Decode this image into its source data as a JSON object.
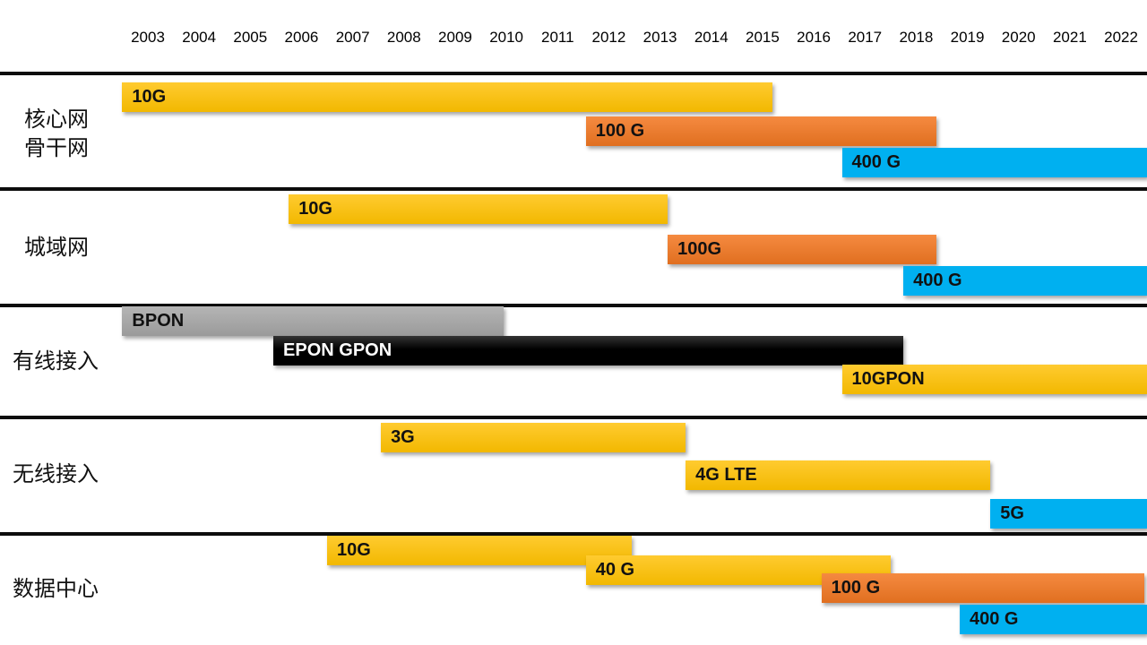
{
  "chart_data": {
    "type": "gantt",
    "title": "",
    "years": [
      "2003",
      "2004",
      "2005",
      "2006",
      "2007",
      "2008",
      "2009",
      "2010",
      "2011",
      "2012",
      "2013",
      "2014",
      "2015",
      "2016",
      "2017",
      "2018",
      "2019",
      "2020",
      "2021",
      "2022"
    ],
    "colors": {
      "yellow": "#FFC000",
      "orange": "#ED7D31",
      "blue": "#00B0F0",
      "gray": "#A6A6A6",
      "black": "#000000"
    },
    "rows": [
      {
        "label": "核心网\n骨干网",
        "bars": [
          {
            "label": "10G",
            "start": 2002.5,
            "end": 2015.2,
            "color": "yellow"
          },
          {
            "label": "100 G",
            "start": 2011.55,
            "end": 2018.4,
            "color": "orange"
          },
          {
            "label": "400 G",
            "start": 2016.55,
            "end": 2022.5,
            "color": "blue"
          }
        ]
      },
      {
        "label": "城域网",
        "bars": [
          {
            "label": "10G",
            "start": 2005.75,
            "end": 2013.15,
            "color": "yellow"
          },
          {
            "label": "100G",
            "start": 2013.15,
            "end": 2018.4,
            "color": "orange"
          },
          {
            "label": "400 G",
            "start": 2017.75,
            "end": 2022.5,
            "color": "blue"
          }
        ]
      },
      {
        "label": "有线接入",
        "bars": [
          {
            "label": "BPON",
            "start": 2002.5,
            "end": 2009.95,
            "color": "gray"
          },
          {
            "label": "EPON GPON",
            "start": 2005.45,
            "end": 2017.75,
            "color": "black"
          },
          {
            "label": "10GPON",
            "start": 2016.55,
            "end": 2022.5,
            "color": "yellow"
          }
        ]
      },
      {
        "label": "无线接入",
        "bars": [
          {
            "label": "3G",
            "start": 2007.55,
            "end": 2013.5,
            "color": "yellow"
          },
          {
            "label": "4G LTE",
            "start": 2013.5,
            "end": 2019.45,
            "color": "yellow"
          },
          {
            "label": "5G",
            "start": 2019.45,
            "end": 2022.5,
            "color": "blue"
          }
        ]
      },
      {
        "label": "数据中心",
        "bars": [
          {
            "label": "10G",
            "start": 2006.5,
            "end": 2012.45,
            "color": "yellow"
          },
          {
            "label": "40 G",
            "start": 2011.55,
            "end": 2017.5,
            "color": "yellow"
          },
          {
            "label": "100 G",
            "start": 2016.15,
            "end": 2022.45,
            "color": "orange"
          },
          {
            "label": "400 G",
            "start": 2018.85,
            "end": 2022.5,
            "color": "blue"
          }
        ]
      }
    ]
  }
}
